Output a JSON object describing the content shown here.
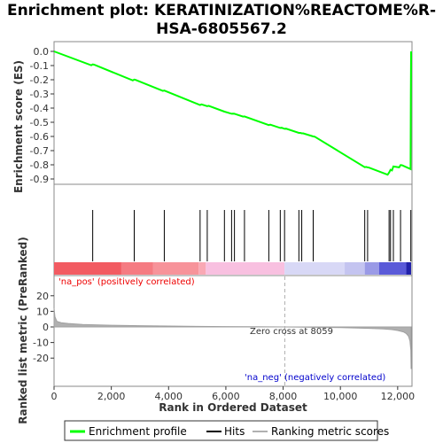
{
  "chart_data": [
    {
      "type": "line",
      "title": "Enrichment plot: KERATINIZATION%REACTOME%R-HSA-6805567.2",
      "title_lines": [
        "Enrichment plot: KERATINIZATION%REACTOME%R-",
        "HSA-6805567.2"
      ],
      "ylabel": "Enrichment score (ES)",
      "ylim": [
        -0.9,
        0.0
      ],
      "xlim": [
        0,
        12500
      ],
      "y_ticks": [
        0.0,
        -0.1,
        -0.2,
        -0.3,
        -0.4,
        -0.5,
        -0.6,
        -0.7,
        -0.8,
        -0.9
      ],
      "y_tick_labels": [
        "0.0",
        "-0.1",
        "-0.2",
        "-0.3",
        "-0.4",
        "-0.5",
        "-0.6",
        "-0.7",
        "-0.8",
        "-0.9"
      ],
      "series": [
        {
          "name": "Enrichment profile",
          "color": "#00ff00",
          "x": [
            0,
            1300,
            1350,
            1400,
            2750,
            2800,
            2850,
            3800,
            3850,
            5100,
            5150,
            5350,
            5400,
            5950,
            6200,
            6250,
            6300,
            6350,
            6600,
            6650,
            7500,
            7550,
            7900,
            7950,
            8050,
            8100,
            8550,
            8600,
            8650,
            8700,
            9050,
            9100,
            10850,
            10900,
            10950,
            11000,
            11650,
            11700,
            11750,
            11800,
            11850,
            11900,
            12050,
            12100,
            12150,
            12450,
            12460,
            12470
          ],
          "y": [
            0.0,
            -0.098,
            -0.092,
            -0.094,
            -0.205,
            -0.199,
            -0.201,
            -0.279,
            -0.276,
            -0.378,
            -0.374,
            -0.386,
            -0.384,
            -0.425,
            -0.44,
            -0.439,
            -0.44,
            -0.443,
            -0.46,
            -0.459,
            -0.52,
            -0.517,
            -0.54,
            -0.539,
            -0.546,
            -0.545,
            -0.575,
            -0.575,
            -0.578,
            -0.578,
            -0.6,
            -0.601,
            -0.817,
            -0.815,
            -0.818,
            -0.82,
            -0.87,
            -0.855,
            -0.835,
            -0.84,
            -0.812,
            -0.813,
            -0.818,
            -0.802,
            -0.803,
            -0.83,
            -0.31,
            0.0
          ]
        }
      ]
    },
    {
      "type": "scatter",
      "name": "Hits",
      "hits": [
        1350,
        2800,
        3850,
        5100,
        5350,
        5950,
        6200,
        6300,
        6650,
        7500,
        7900,
        8050,
        8550,
        8650,
        9050,
        10850,
        10950,
        11700,
        11750,
        11850,
        12100,
        12460
      ]
    },
    {
      "type": "heatmap",
      "name": "ranked-list-color-bar",
      "segments": [
        {
          "from": 0,
          "to": 2350,
          "color": "#f25b62"
        },
        {
          "from": 2350,
          "to": 3450,
          "color": "#f57b82"
        },
        {
          "from": 3450,
          "to": 5050,
          "color": "#f7939a"
        },
        {
          "from": 5050,
          "to": 5300,
          "color": "#f9a8b4"
        },
        {
          "from": 5300,
          "to": 8050,
          "color": "#f8c0e0"
        },
        {
          "from": 8050,
          "to": 10150,
          "color": "#d8d8f6"
        },
        {
          "from": 10150,
          "to": 10850,
          "color": "#c4c4f0"
        },
        {
          "from": 10850,
          "to": 11350,
          "color": "#9a9ae6"
        },
        {
          "from": 11350,
          "to": 12300,
          "color": "#5a5ad8"
        },
        {
          "from": 12300,
          "to": 12470,
          "color": "#2222aa"
        }
      ]
    },
    {
      "type": "area",
      "ylabel": "Ranked list metric (PreRanked)",
      "xlabel": "Rank in Ordered Dataset",
      "ylim": [
        -25,
        25
      ],
      "xlim": [
        0,
        12500
      ],
      "y_ticks": [
        20,
        10,
        0,
        -10,
        -20
      ],
      "y_tick_labels": [
        "20",
        "10",
        "0",
        "-10",
        "-20"
      ],
      "x_ticks": [
        0,
        2000,
        4000,
        6000,
        8000,
        10000,
        12000
      ],
      "x_tick_labels": [
        "0",
        "2,000",
        "4,000",
        "6,000",
        "8,000",
        "10,000",
        "12,000"
      ],
      "zero_cross": 8059,
      "series": [
        {
          "name": "Ranking metric scores",
          "color": "#b0b0b0",
          "x": [
            0,
            30,
            100,
            250,
            500,
            1000,
            2000,
            3000,
            4000,
            5000,
            6000,
            7000,
            8059,
            9000,
            10000,
            11000,
            11500,
            11800,
            12000,
            12200,
            12300,
            12380,
            12430,
            12460,
            12470
          ],
          "y": [
            12.0,
            6.5,
            3.6,
            2.7,
            2.2,
            1.6,
            1.1,
            0.8,
            0.55,
            0.35,
            0.2,
            0.1,
            0.0,
            -0.2,
            -0.45,
            -0.9,
            -1.3,
            -1.7,
            -2.3,
            -3.2,
            -4.2,
            -6.0,
            -9.0,
            -15.0,
            -27.0
          ]
        }
      ],
      "annotations": {
        "pos_label": "'na_pos' (positively correlated)",
        "neg_label": "'na_neg' (negatively correlated)",
        "zero_label": "Zero cross at 8059",
        "pos_color": "#ee0000",
        "neg_color": "#0000cc"
      }
    }
  ],
  "legend": {
    "items": [
      {
        "label": "Enrichment profile",
        "color": "#00ff00"
      },
      {
        "label": "Hits",
        "color": "#000000"
      },
      {
        "label": "Ranking metric scores",
        "color": "#b0b0b0"
      }
    ]
  }
}
